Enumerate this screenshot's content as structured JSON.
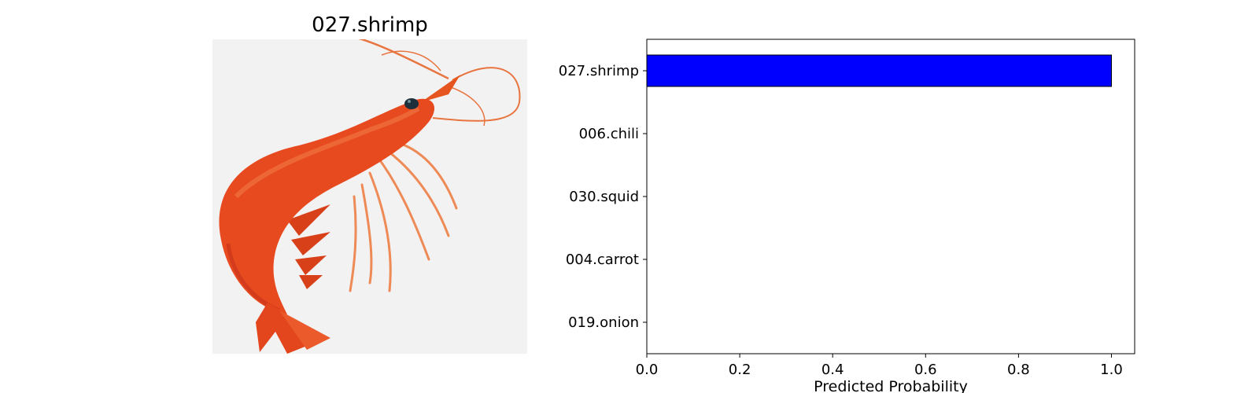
{
  "image_title": "027.shrimp",
  "image_subject": "shrimp",
  "chart_data": {
    "type": "bar",
    "orientation": "horizontal",
    "categories": [
      "027.shrimp",
      "006.chili",
      "030.squid",
      "004.carrot",
      "019.onion"
    ],
    "values": [
      1.0,
      0.0,
      0.0,
      0.0,
      0.0
    ],
    "xlabel": "Predicted Probability",
    "ylabel": "",
    "xlim": [
      0.0,
      1.05
    ],
    "xticks": [
      "0.0",
      "0.2",
      "0.4",
      "0.6",
      "0.8",
      "1.0"
    ],
    "bar_color": "#0000ff",
    "bar_edge_color": "#000000",
    "grid": false
  }
}
